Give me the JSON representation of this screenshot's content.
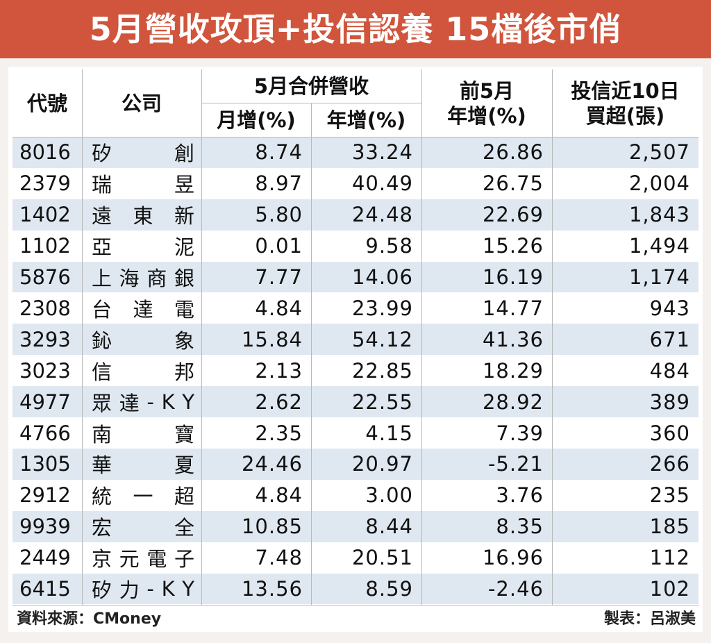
{
  "title": "5月營收攻頂+投信認養 15檔後市俏",
  "table": {
    "header": {
      "code": "代號",
      "company": "公司",
      "group": "5月合併營收",
      "mom": "月增(%)",
      "yoy": "年增(%)",
      "ytd": [
        "前5月",
        "年增(%)"
      ],
      "buy": [
        "投信近10日",
        "買超(張)"
      ]
    },
    "rows": [
      [
        "8016",
        "矽創",
        "8.74",
        "33.24",
        "26.86",
        "2,507"
      ],
      [
        "2379",
        "瑞昱",
        "8.97",
        "40.49",
        "26.75",
        "2,004"
      ],
      [
        "1402",
        "遠東新",
        "5.80",
        "24.48",
        "22.69",
        "1,843"
      ],
      [
        "1102",
        "亞泥",
        "0.01",
        "9.58",
        "15.26",
        "1,494"
      ],
      [
        "5876",
        "上海商銀",
        "7.77",
        "14.06",
        "16.19",
        "1,174"
      ],
      [
        "2308",
        "台達電",
        "4.84",
        "23.99",
        "14.77",
        "943"
      ],
      [
        "3293",
        "鈊象",
        "15.84",
        "54.12",
        "41.36",
        "671"
      ],
      [
        "3023",
        "信邦",
        "2.13",
        "22.85",
        "18.29",
        "484"
      ],
      [
        "4977",
        "眾達-KY",
        "2.62",
        "22.55",
        "28.92",
        "389"
      ],
      [
        "4766",
        "南寶",
        "2.35",
        "4.15",
        "7.39",
        "360"
      ],
      [
        "1305",
        "華夏",
        "24.46",
        "20.97",
        "-5.21",
        "266"
      ],
      [
        "2912",
        "統一超",
        "4.84",
        "3.00",
        "3.76",
        "235"
      ],
      [
        "9939",
        "宏全",
        "10.85",
        "8.44",
        "8.35",
        "185"
      ],
      [
        "2449",
        "京元電子",
        "7.48",
        "20.51",
        "16.96",
        "112"
      ],
      [
        "6415",
        "矽力-KY",
        "13.56",
        "8.59",
        "-2.46",
        "102"
      ]
    ]
  },
  "footer": {
    "source": "資料來源：CMoney",
    "credit": "製表：呂淑美"
  }
}
